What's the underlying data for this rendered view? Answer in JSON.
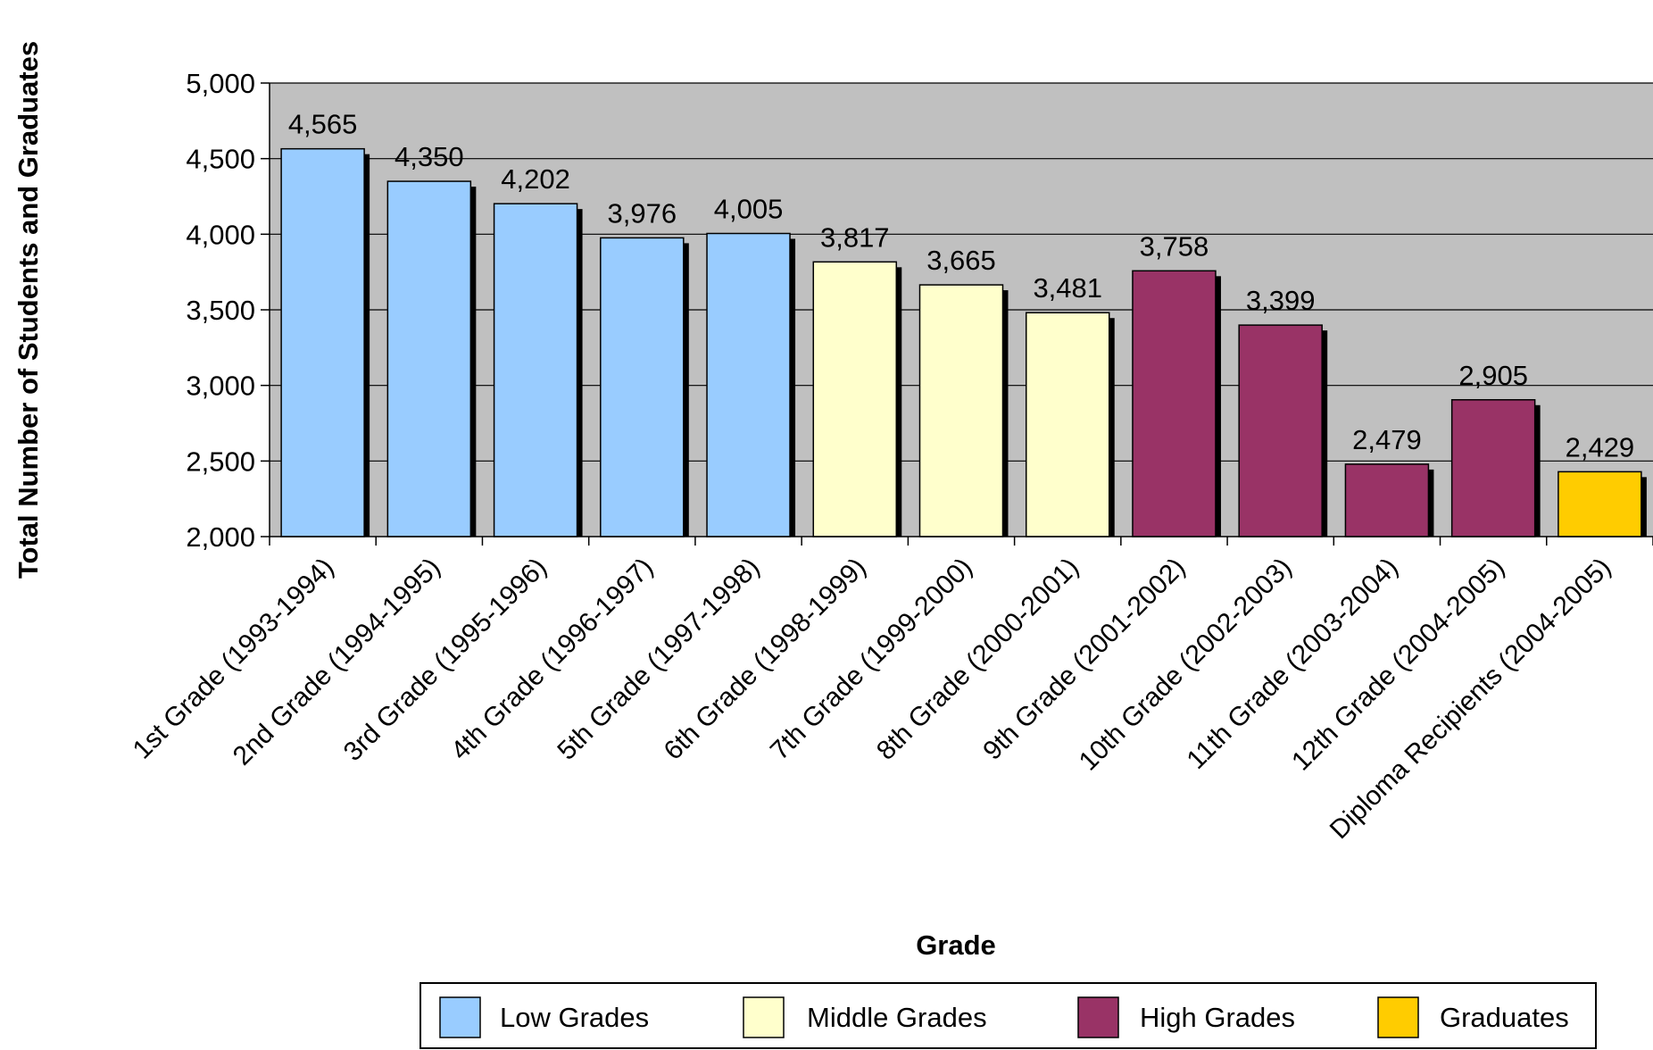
{
  "chart_data": {
    "type": "bar",
    "title": "",
    "xlabel": "Grade",
    "ylabel": "Total Number of Students and Graduates",
    "ylim": [
      2000,
      5000
    ],
    "yticks": [
      2000,
      2500,
      3000,
      3500,
      4000,
      4500,
      5000
    ],
    "ytick_labels": [
      "2,000",
      "2,500",
      "3,000",
      "3,500",
      "4,000",
      "4,500",
      "5,000"
    ],
    "grid": true,
    "legend_position": "bottom",
    "categories": [
      "1st Grade (1993-1994)",
      "2nd Grade (1994-1995)",
      "3rd Grade (1995-1996)",
      "4th Grade (1996-1997)",
      "5th Grade (1997-1998)",
      "6th Grade (1998-1999)",
      "7th Grade (1999-2000)",
      "8th Grade (2000-2001)",
      "9th Grade (2001-2002)",
      "10th Grade (2002-2003)",
      "11th Grade (2003-2004)",
      "12th Grade (2004-2005)",
      "Diploma Recipients (2004-2005)"
    ],
    "values": [
      4565,
      4350,
      4202,
      3976,
      4005,
      3817,
      3665,
      3481,
      3758,
      3399,
      2479,
      2905,
      2429
    ],
    "value_labels": [
      "4,565",
      "4,350",
      "4,202",
      "3,976",
      "4,005",
      "3,817",
      "3,665",
      "3,481",
      "3,758",
      "3,399",
      "2,479",
      "2,905",
      "2,429"
    ],
    "groups": [
      "Low Grades",
      "Low Grades",
      "Low Grades",
      "Low Grades",
      "Low Grades",
      "Middle Grades",
      "Middle Grades",
      "Middle Grades",
      "High Grades",
      "High Grades",
      "High Grades",
      "High Grades",
      "Graduates"
    ],
    "legend": [
      {
        "name": "Low Grades",
        "color": "#99CCFF"
      },
      {
        "name": "Middle Grades",
        "color": "#FFFFCC"
      },
      {
        "name": "High Grades",
        "color": "#993366"
      },
      {
        "name": "Graduates",
        "color": "#FFCC00"
      }
    ],
    "plot_background": "#C0C0C0"
  }
}
